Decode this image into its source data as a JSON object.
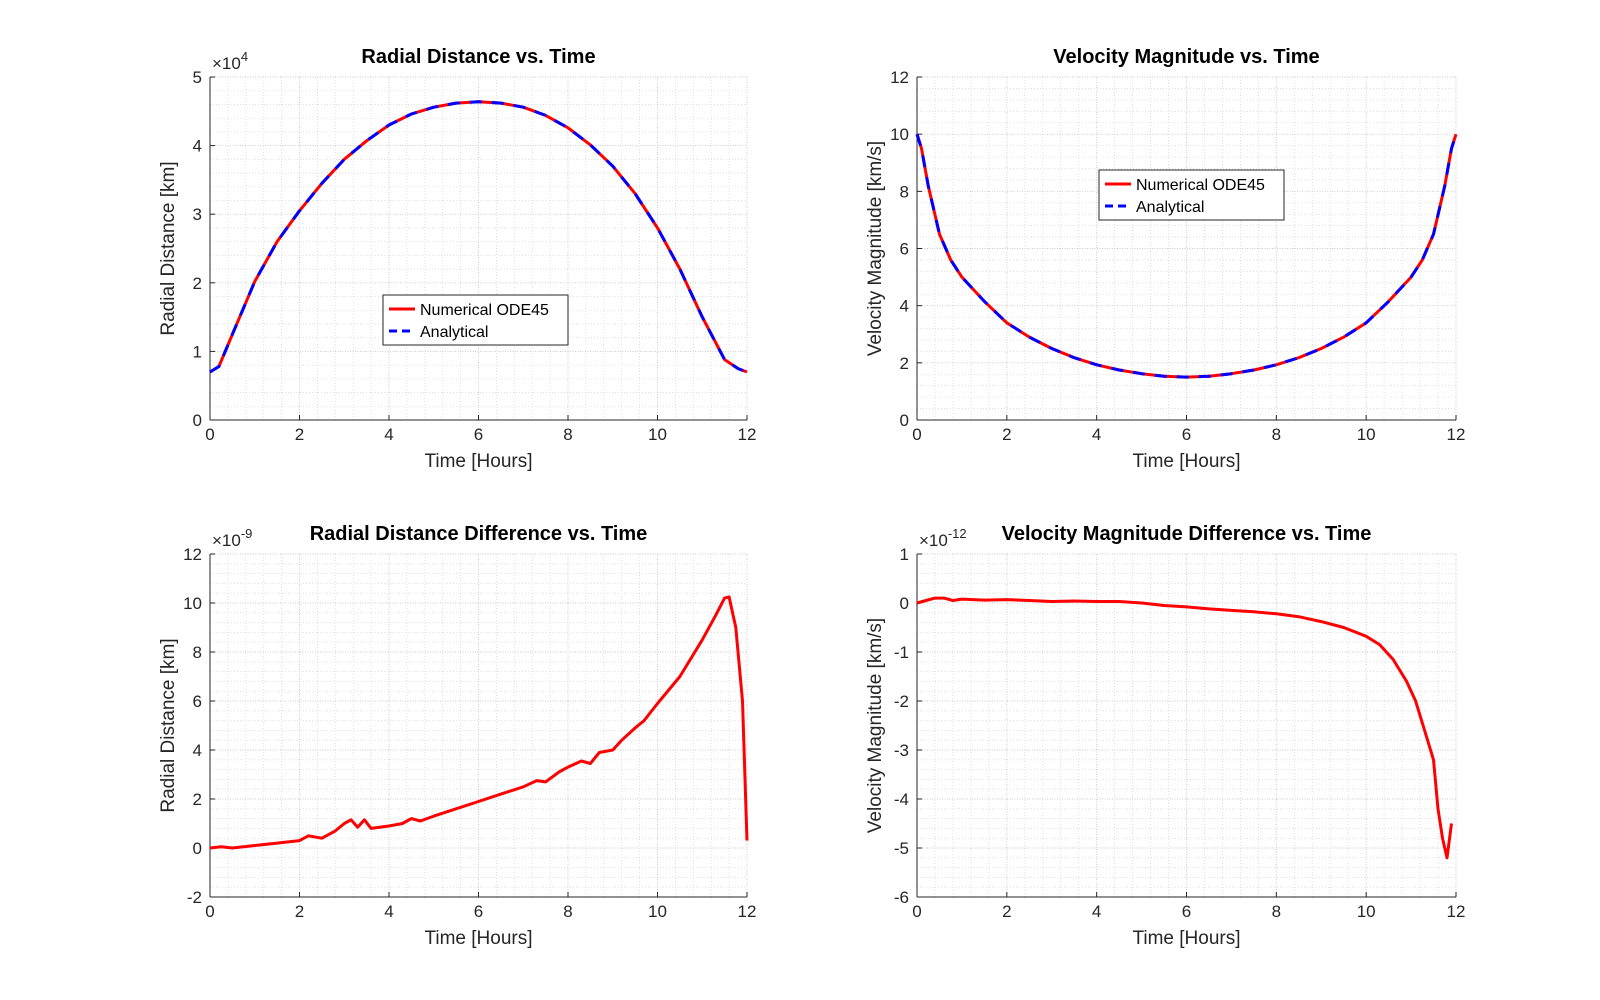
{
  "chart_data": [
    {
      "type": "line",
      "title": "Radial Distance vs. Time",
      "xlabel": "Time [Hours]",
      "ylabel": "Radial Distance [km]",
      "exponent_label": "×10",
      "exponent_power": "4",
      "xlim": [
        0,
        12
      ],
      "ylim": [
        0,
        5
      ],
      "xticks": [
        0,
        2,
        4,
        6,
        8,
        10,
        12
      ],
      "yticks": [
        0,
        1,
        2,
        3,
        4,
        5
      ],
      "xtick_labels": [
        "0",
        "2",
        "4",
        "6",
        "8",
        "10",
        "12"
      ],
      "ytick_labels": [
        "0",
        "1",
        "2",
        "3",
        "4",
        "5"
      ],
      "grid": true,
      "legend_position": "center-bottom",
      "series": [
        {
          "name": "Numerical ODE45",
          "color": "#ff0000",
          "style": "solid",
          "x": [
            0,
            0.2,
            0.5,
            1,
            1.5,
            2,
            2.5,
            3,
            3.5,
            4,
            4.5,
            5,
            5.5,
            6,
            6.5,
            7,
            7.5,
            8,
            8.5,
            9,
            9.5,
            10,
            10.5,
            11,
            11.5,
            11.8,
            12
          ],
          "y": [
            0.7,
            0.78,
            1.25,
            2.02,
            2.6,
            3.05,
            3.45,
            3.8,
            4.07,
            4.3,
            4.46,
            4.56,
            4.62,
            4.64,
            4.62,
            4.56,
            4.44,
            4.26,
            4.01,
            3.7,
            3.3,
            2.8,
            2.2,
            1.5,
            0.88,
            0.75,
            0.7
          ]
        },
        {
          "name": "Analytical",
          "color": "#0000ff",
          "style": "dashed",
          "x": [
            0,
            0.2,
            0.5,
            1,
            1.5,
            2,
            2.5,
            3,
            3.5,
            4,
            4.5,
            5,
            5.5,
            6,
            6.5,
            7,
            7.5,
            8,
            8.5,
            9,
            9.5,
            10,
            10.5,
            11,
            11.5,
            11.8,
            12
          ],
          "y": [
            0.7,
            0.78,
            1.25,
            2.02,
            2.6,
            3.05,
            3.45,
            3.8,
            4.07,
            4.3,
            4.46,
            4.56,
            4.62,
            4.64,
            4.62,
            4.56,
            4.44,
            4.26,
            4.01,
            3.7,
            3.3,
            2.8,
            2.2,
            1.5,
            0.88,
            0.75,
            0.7
          ]
        }
      ]
    },
    {
      "type": "line",
      "title": "Velocity Magnitude vs. Time",
      "xlabel": "Time [Hours]",
      "ylabel": "Velocity Magnitude [km/s]",
      "exponent_label": "",
      "exponent_power": "",
      "xlim": [
        0,
        12
      ],
      "ylim": [
        0,
        12
      ],
      "xticks": [
        0,
        2,
        4,
        6,
        8,
        10,
        12
      ],
      "yticks": [
        0,
        2,
        4,
        6,
        8,
        10,
        12
      ],
      "xtick_labels": [
        "0",
        "2",
        "4",
        "6",
        "8",
        "10",
        "12"
      ],
      "ytick_labels": [
        "0",
        "2",
        "4",
        "6",
        "8",
        "10",
        "12"
      ],
      "grid": true,
      "legend_position": "center-top",
      "series": [
        {
          "name": "Numerical ODE45",
          "color": "#ff0000",
          "style": "solid",
          "x": [
            0,
            0.1,
            0.25,
            0.5,
            0.75,
            1,
            1.5,
            2,
            2.5,
            3,
            3.5,
            4,
            4.5,
            5,
            5.5,
            6,
            6.5,
            7,
            7.5,
            8,
            8.5,
            9,
            9.5,
            10,
            10.5,
            11,
            11.25,
            11.5,
            11.75,
            11.9,
            12
          ],
          "y": [
            10,
            9.5,
            8.2,
            6.5,
            5.6,
            5.0,
            4.15,
            3.4,
            2.9,
            2.5,
            2.18,
            1.93,
            1.75,
            1.62,
            1.53,
            1.5,
            1.53,
            1.62,
            1.75,
            1.93,
            2.18,
            2.5,
            2.9,
            3.4,
            4.15,
            5.0,
            5.6,
            6.5,
            8.2,
            9.5,
            10
          ]
        },
        {
          "name": "Analytical",
          "color": "#0000ff",
          "style": "dashed",
          "x": [
            0,
            0.1,
            0.25,
            0.5,
            0.75,
            1,
            1.5,
            2,
            2.5,
            3,
            3.5,
            4,
            4.5,
            5,
            5.5,
            6,
            6.5,
            7,
            7.5,
            8,
            8.5,
            9,
            9.5,
            10,
            10.5,
            11,
            11.25,
            11.5,
            11.75,
            11.9,
            12
          ],
          "y": [
            10,
            9.5,
            8.2,
            6.5,
            5.6,
            5.0,
            4.15,
            3.4,
            2.9,
            2.5,
            2.18,
            1.93,
            1.75,
            1.62,
            1.53,
            1.5,
            1.53,
            1.62,
            1.75,
            1.93,
            2.18,
            2.5,
            2.9,
            3.4,
            4.15,
            5.0,
            5.6,
            6.5,
            8.2,
            9.5,
            10
          ]
        }
      ]
    },
    {
      "type": "line",
      "title": "Radial Distance Difference vs. Time",
      "xlabel": "Time [Hours]",
      "ylabel": "Radial Distance [km]",
      "exponent_label": "×10",
      "exponent_power": "-9",
      "xlim": [
        0,
        12
      ],
      "ylim": [
        -2,
        12
      ],
      "xticks": [
        0,
        2,
        4,
        6,
        8,
        10,
        12
      ],
      "yticks": [
        -2,
        0,
        2,
        4,
        6,
        8,
        10,
        12
      ],
      "xtick_labels": [
        "0",
        "2",
        "4",
        "6",
        "8",
        "10",
        "12"
      ],
      "ytick_labels": [
        "-2",
        "0",
        "2",
        "4",
        "6",
        "8",
        "10",
        "12"
      ],
      "grid": true,
      "legend_position": "none",
      "series": [
        {
          "name": "",
          "color": "#ff0000",
          "style": "solid",
          "x": [
            0,
            0.25,
            0.5,
            0.75,
            1,
            1.5,
            2,
            2.2,
            2.5,
            2.8,
            3,
            3.15,
            3.3,
            3.45,
            3.6,
            4,
            4.3,
            4.5,
            4.7,
            5,
            5.5,
            6,
            6.5,
            7,
            7.3,
            7.5,
            7.8,
            8,
            8.3,
            8.5,
            8.7,
            9,
            9.2,
            9.5,
            9.7,
            10,
            10.5,
            11,
            11.3,
            11.5,
            11.6,
            11.75,
            11.9,
            12
          ],
          "y": [
            0,
            0.05,
            0,
            0.05,
            0.1,
            0.2,
            0.3,
            0.5,
            0.4,
            0.7,
            1.0,
            1.15,
            0.85,
            1.15,
            0.8,
            0.9,
            1.0,
            1.2,
            1.1,
            1.3,
            1.6,
            1.9,
            2.2,
            2.5,
            2.75,
            2.7,
            3.1,
            3.3,
            3.55,
            3.45,
            3.9,
            4.0,
            4.4,
            4.9,
            5.2,
            5.9,
            7.0,
            8.5,
            9.5,
            10.2,
            10.25,
            9.0,
            6.0,
            0.3
          ]
        }
      ]
    },
    {
      "type": "line",
      "title": "Velocity Magnitude Difference vs. Time",
      "xlabel": "Time [Hours]",
      "ylabel": "Velocity Magnitude [km/s]",
      "exponent_label": "×10",
      "exponent_power": "-12",
      "xlim": [
        0,
        12
      ],
      "ylim": [
        -6,
        1
      ],
      "xticks": [
        0,
        2,
        4,
        6,
        8,
        10,
        12
      ],
      "yticks": [
        -6,
        -5,
        -4,
        -3,
        -2,
        -1,
        0,
        1
      ],
      "xtick_labels": [
        "0",
        "2",
        "4",
        "6",
        "8",
        "10",
        "12"
      ],
      "ytick_labels": [
        "-6",
        "-5",
        "-4",
        "-3",
        "-2",
        "-1",
        "0",
        "1"
      ],
      "grid": true,
      "legend_position": "none",
      "series": [
        {
          "name": "",
          "color": "#ff0000",
          "style": "solid",
          "x": [
            0,
            0.2,
            0.4,
            0.6,
            0.8,
            1,
            1.5,
            2,
            2.5,
            3,
            3.5,
            4,
            4.5,
            5,
            5.5,
            6,
            6.5,
            7,
            7.5,
            8,
            8.5,
            8.7,
            9,
            9.5,
            10,
            10.3,
            10.6,
            10.9,
            11.1,
            11.3,
            11.5,
            11.6,
            11.7,
            11.8,
            11.9
          ],
          "y": [
            0,
            0.05,
            0.1,
            0.1,
            0.05,
            0.08,
            0.06,
            0.07,
            0.05,
            0.03,
            0.04,
            0.03,
            0.03,
            0.0,
            -0.05,
            -0.08,
            -0.12,
            -0.15,
            -0.18,
            -0.22,
            -0.28,
            -0.32,
            -0.38,
            -0.5,
            -0.68,
            -0.85,
            -1.15,
            -1.6,
            -2.0,
            -2.6,
            -3.2,
            -4.2,
            -4.8,
            -5.2,
            -4.5
          ]
        }
      ]
    }
  ]
}
